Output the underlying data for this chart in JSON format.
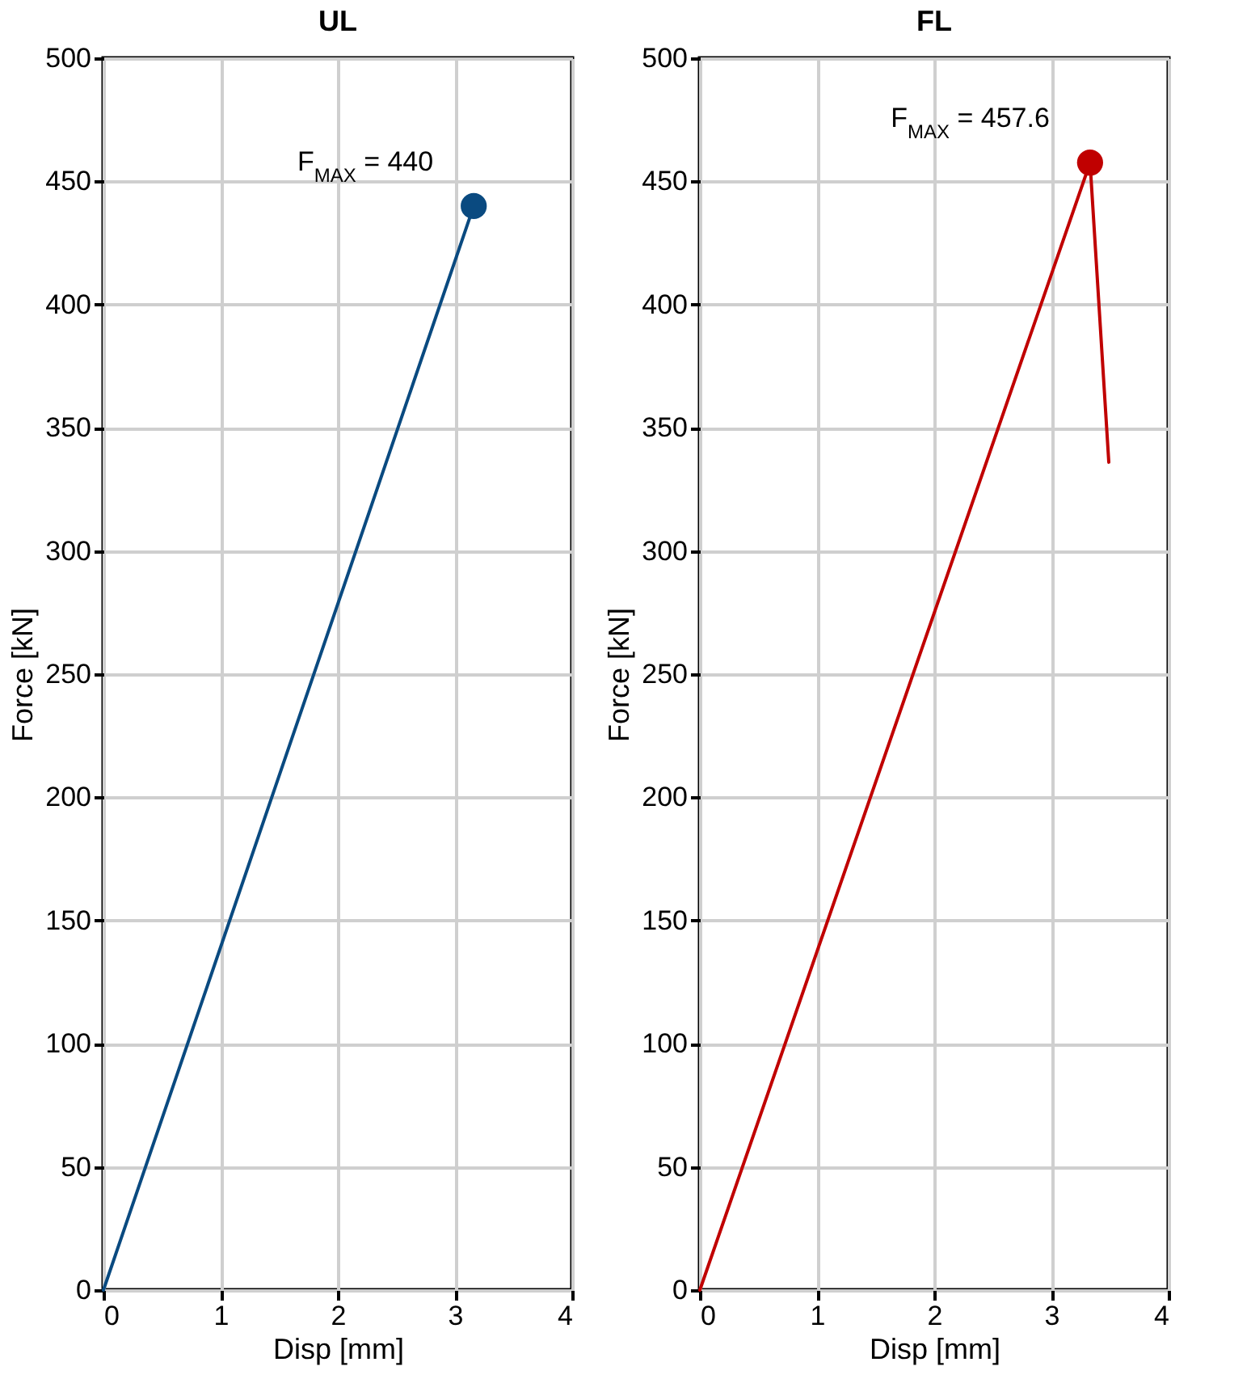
{
  "chart_data": [
    {
      "type": "line",
      "title": "UL",
      "xlabel": "Disp [mm]",
      "ylabel": "Force [kN]",
      "xlim": [
        0,
        4
      ],
      "xticks": [
        0,
        1,
        2,
        3,
        4
      ],
      "ylim": [
        0,
        500
      ],
      "yticks": [
        0,
        50,
        100,
        150,
        200,
        250,
        300,
        350,
        400,
        450,
        500
      ],
      "grid": true,
      "series": [
        {
          "color": "#0a4a80",
          "x": [
            0,
            3.16
          ],
          "values": [
            0,
            440
          ]
        },
        {
          "type": "scatter",
          "marker": "circle",
          "color": "#0a4a80",
          "x": [
            3.16
          ],
          "values": [
            440
          ]
        }
      ],
      "annotations": [
        {
          "text": "F$_{MAX}$ = 440",
          "x": 3.16,
          "y": 440
        }
      ]
    },
    {
      "type": "line",
      "title": "FL",
      "xlabel": "Disp [mm]",
      "ylabel": "Force [kN]",
      "xlim": [
        0,
        4
      ],
      "xticks": [
        0,
        1,
        2,
        3,
        4
      ],
      "ylim": [
        0,
        500
      ],
      "yticks": [
        0,
        50,
        100,
        150,
        200,
        250,
        300,
        350,
        400,
        450,
        500
      ],
      "grid": true,
      "series": [
        {
          "color": "#c00000",
          "x": [
            0,
            3.33,
            3.49
          ],
          "values": [
            0,
            457.6,
            336
          ]
        },
        {
          "type": "scatter",
          "marker": "circle",
          "color": "#c00000",
          "x": [
            3.33
          ],
          "values": [
            457.6
          ]
        }
      ],
      "annotations": [
        {
          "text": "F$_{MAX}$ = 457.6",
          "x": 3.33,
          "y": 457.6
        }
      ]
    }
  ]
}
